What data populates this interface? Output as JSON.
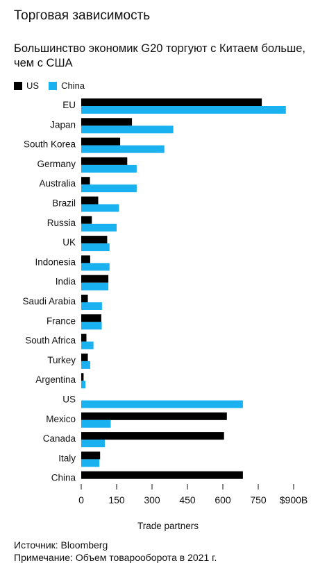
{
  "headline": "Торговая зависимость",
  "subtitle": "Большинство экономик G20 торгуют с Китаем больше, чем с США",
  "source": "Источник: Bloomberg",
  "footnote": "Примечание: Объем товарооборота в 2021 г.",
  "colors": {
    "US": "#000000",
    "China": "#1ab1f0"
  },
  "chart_data": {
    "type": "bar",
    "orientation": "horizontal",
    "categories": [
      "EU",
      "Japan",
      "South Korea",
      "Germany",
      "Australia",
      "Brazil",
      "Russia",
      "UK",
      "Indonesia",
      "India",
      "Saudi Arabia",
      "France",
      "South Africa",
      "Turkey",
      "Argentina",
      "US",
      "Mexico",
      "Canada",
      "Italy",
      "China"
    ],
    "series": [
      {
        "name": "US",
        "values": [
          765,
          215,
          165,
          195,
          37,
          72,
          45,
          110,
          38,
          115,
          28,
          85,
          22,
          28,
          10,
          0,
          617,
          605,
          80,
          685
        ]
      },
      {
        "name": "China",
        "values": [
          867,
          390,
          352,
          235,
          235,
          160,
          150,
          120,
          120,
          115,
          88,
          87,
          52,
          38,
          18,
          685,
          125,
          100,
          77,
          0
        ]
      }
    ],
    "xlabel": "Trade partners",
    "xlim": [
      0,
      900
    ],
    "xticks": [
      0,
      150,
      300,
      450,
      600,
      750,
      900
    ],
    "xtick_labels": [
      "0",
      "150",
      "300",
      "450",
      "600",
      "750",
      "$900B"
    ],
    "legend": "top-left",
    "grid": false
  }
}
